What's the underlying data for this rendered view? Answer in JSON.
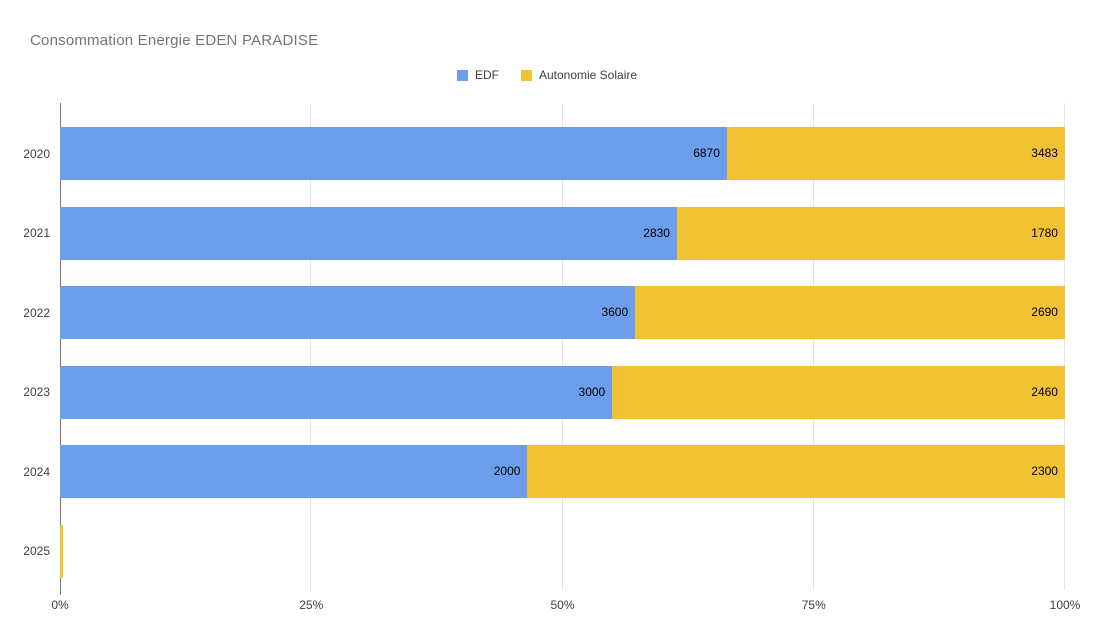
{
  "chart_data": {
    "type": "bar",
    "subtype": "horizontal-100-percent-stacked",
    "title": "Consommation Energie EDEN PARADISE",
    "legend_position": "top",
    "grid": true,
    "categories": [
      "2020",
      "2021",
      "2022",
      "2023",
      "2024",
      "2025"
    ],
    "series": [
      {
        "name": "EDF",
        "color": "#6d9eeb",
        "values": [
          6870,
          2830,
          3600,
          3000,
          2000,
          null
        ]
      },
      {
        "name": "Autonomie Solaire",
        "color": "#f1c232",
        "values": [
          3483,
          1780,
          2690,
          2460,
          2300,
          null
        ]
      }
    ],
    "segment_percents": [
      [
        66.36,
        33.64
      ],
      [
        61.39,
        38.61
      ],
      [
        57.23,
        42.77
      ],
      [
        54.95,
        45.05
      ],
      [
        46.51,
        53.49
      ],
      [
        0,
        0.25
      ]
    ],
    "x_axis": {
      "unit": "percent",
      "range": [
        0,
        100
      ],
      "ticks": [
        "0%",
        "25%",
        "50%",
        "75%",
        "100%"
      ],
      "tick_values": [
        0,
        25,
        50,
        75,
        100
      ]
    },
    "colors": {
      "title_text": "#757575",
      "legend_text": "#3c4043",
      "axis_text": "#404040",
      "data_label_text": "#000000",
      "gridline": "#e6e6e6",
      "axis_line": "#787878",
      "background": "#ffffff"
    }
  }
}
